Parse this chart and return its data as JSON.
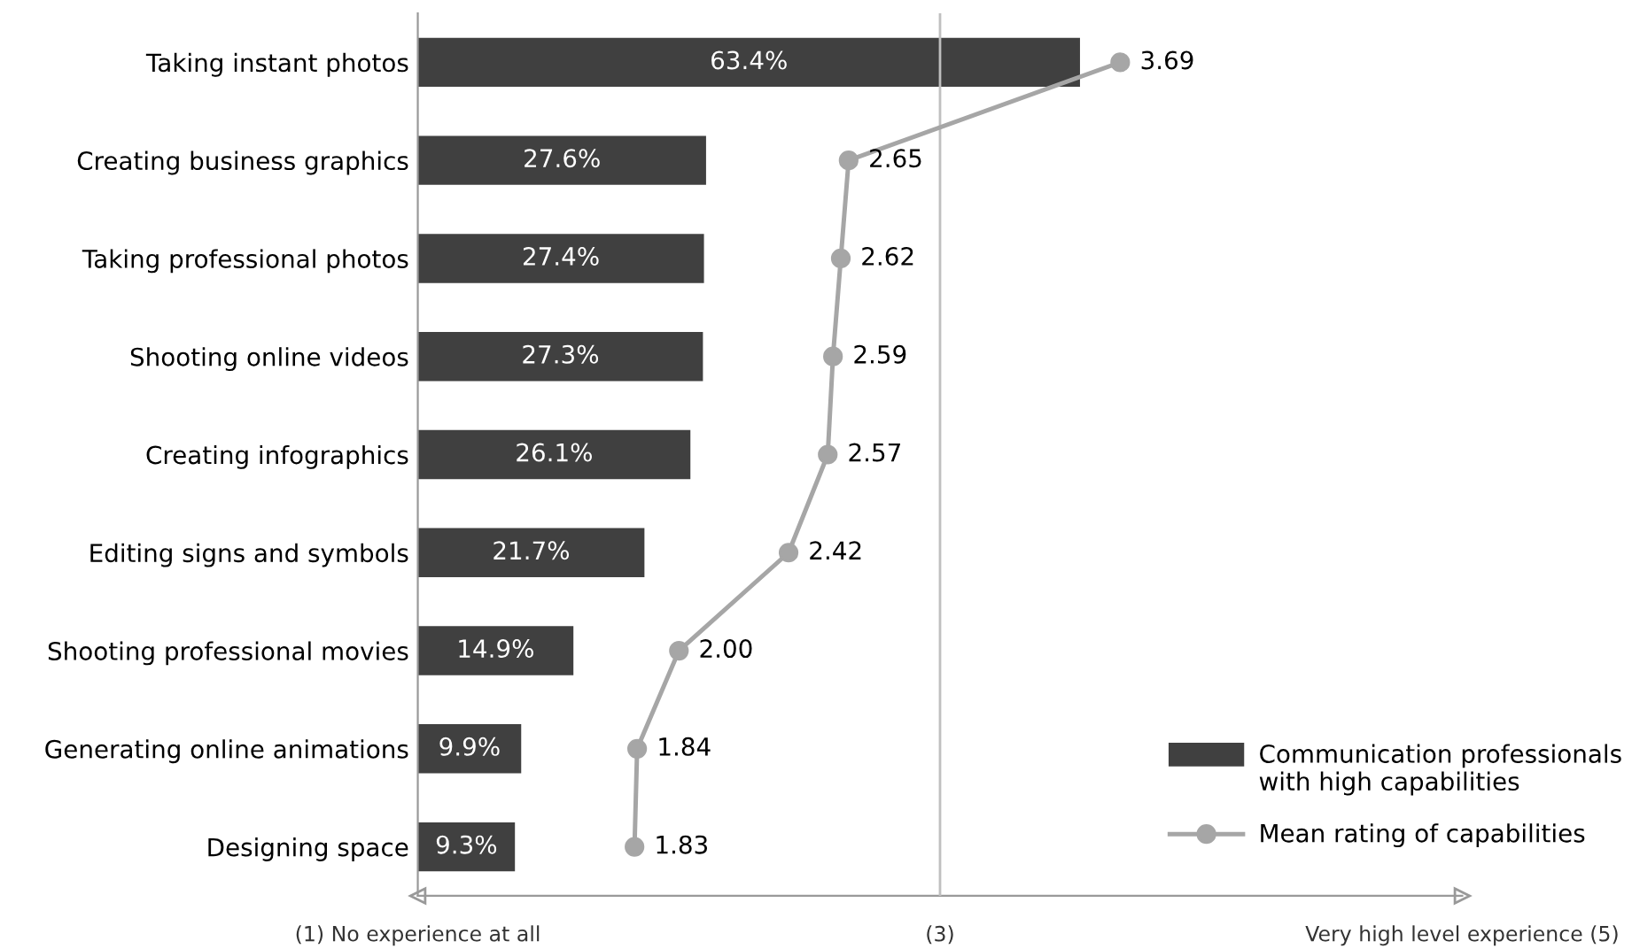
{
  "chart_data": {
    "type": "bar",
    "orientation": "horizontal",
    "categories": [
      "Taking instant photos",
      "Creating business graphics",
      "Taking professional photos",
      "Shooting online videos",
      "Creating infographics",
      "Editing signs and symbols",
      "Shooting professional movies",
      "Generating online animations",
      "Designing space"
    ],
    "xlim": [
      0,
      100
    ],
    "x2lim": [
      1,
      5
    ],
    "x2ticks": [
      {
        "value": 1,
        "label": "(1) No experience at all"
      },
      {
        "value": 3,
        "label": "(3)"
      },
      {
        "value": 5,
        "label": "Very high level experience (5)"
      }
    ],
    "series": [
      {
        "name": "Communication professionals with high capabilities",
        "color": "#404040",
        "values": [
          63.4,
          27.6,
          27.4,
          27.3,
          26.1,
          21.7,
          14.9,
          9.9,
          9.3
        ],
        "value_labels": [
          "63.4%",
          "27.6%",
          "27.4%",
          "27.3%",
          "26.1%",
          "21.7%",
          "14.9%",
          "9.9%",
          "9.3%"
        ]
      },
      {
        "name": "Mean rating of capabilities",
        "type": "line",
        "axis": "x2",
        "color": "#a6a6a6",
        "marker": "circle",
        "line_style": "solid",
        "values": [
          3.69,
          2.65,
          2.62,
          2.59,
          2.57,
          2.42,
          2.0,
          1.84,
          1.83
        ],
        "value_labels": [
          "3.69",
          "2.65",
          "2.62",
          "2.59",
          "2.57",
          "2.42",
          "2.00",
          "1.84",
          "1.83"
        ]
      }
    ],
    "ref_lines": [
      {
        "axis": "x2",
        "value": 3,
        "color": "#bfbfbf"
      }
    ],
    "grid": false,
    "legend": "bottom right"
  }
}
